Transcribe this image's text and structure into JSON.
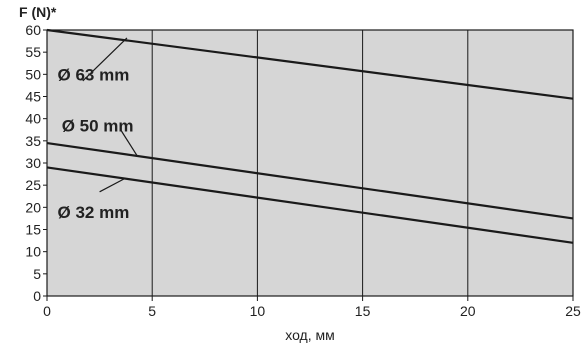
{
  "chart_data": {
    "type": "line",
    "ylabel": "F (N)*",
    "xlabel": "ход, мм",
    "xlim": [
      0,
      25
    ],
    "ylim": [
      0,
      60
    ],
    "x_ticks": [
      0,
      5,
      10,
      15,
      20,
      25
    ],
    "y_ticks": [
      0,
      5,
      10,
      15,
      20,
      25,
      30,
      35,
      40,
      45,
      50,
      55,
      60
    ],
    "grid": true,
    "legend": "none",
    "colors": {
      "plot_bg": "#d6d6d6",
      "line": "#1a1a1a",
      "grid": "#1a1a1a"
    },
    "series": [
      {
        "name": "Ø 63 mm",
        "x": [
          0,
          25
        ],
        "y": [
          60,
          44.5
        ],
        "label_x": 0.5,
        "label_y": 50,
        "leader": [
          [
            1.7,
            48.5
          ],
          [
            3.8,
            58.2
          ]
        ]
      },
      {
        "name": "Ø 50 mm",
        "x": [
          0,
          25
        ],
        "y": [
          34.5,
          17.5
        ],
        "label_x": 0.7,
        "label_y": 38.5,
        "leader": [
          [
            3.5,
            37.5
          ],
          [
            4.3,
            31.5
          ]
        ]
      },
      {
        "name": "Ø 32 mm",
        "x": [
          0,
          25
        ],
        "y": [
          29,
          12
        ],
        "label_x": 0.5,
        "label_y": 19,
        "leader": [
          [
            2.5,
            23.5
          ],
          [
            3.7,
            26.5
          ]
        ]
      }
    ]
  }
}
